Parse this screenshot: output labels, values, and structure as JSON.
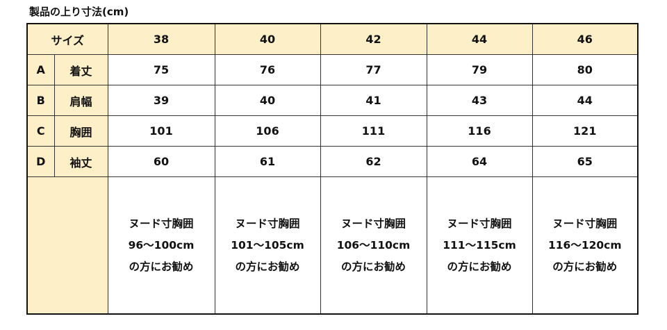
{
  "title": "製品の上り寸法(cm)",
  "header": {
    "label": "サイズ",
    "sizes": [
      "38",
      "40",
      "42",
      "44",
      "46"
    ]
  },
  "rows": [
    {
      "code": "A",
      "name": "着丈",
      "values": [
        "75",
        "76",
        "77",
        "79",
        "80"
      ]
    },
    {
      "code": "B",
      "name": "肩幅",
      "values": [
        "39",
        "40",
        "41",
        "43",
        "44"
      ]
    },
    {
      "code": "C",
      "name": "胸囲",
      "values": [
        "101",
        "106",
        "111",
        "116",
        "121"
      ]
    },
    {
      "code": "D",
      "name": "袖丈",
      "values": [
        "60",
        "61",
        "62",
        "64",
        "65"
      ]
    }
  ],
  "recommend": [
    {
      "l1": "ヌード寸胸囲",
      "l2": "96〜100cm",
      "l3": "の方にお勧め"
    },
    {
      "l1": "ヌード寸胸囲",
      "l2": "101〜105cm",
      "l3": "の方にお勧め"
    },
    {
      "l1": "ヌード寸胸囲",
      "l2": "106〜110cm",
      "l3": "の方にお勧め"
    },
    {
      "l1": "ヌード寸胸囲",
      "l2": "111〜115cm",
      "l3": "の方にお勧め"
    },
    {
      "l1": "ヌード寸胸囲",
      "l2": "116〜120cm",
      "l3": "の方にお勧め"
    }
  ],
  "colors": {
    "header_bg": "#fdefc8"
  }
}
